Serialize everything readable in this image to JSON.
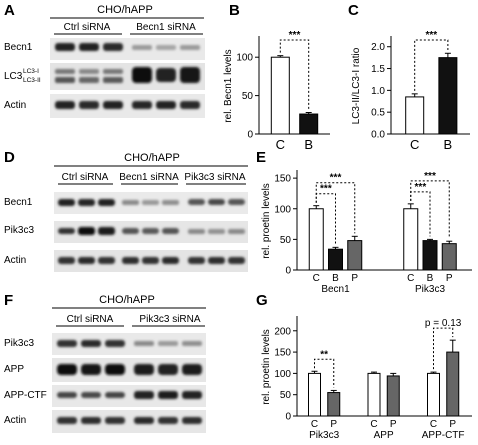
{
  "panels": {
    "A": {
      "letter": "A",
      "cell_line": "CHO/hAPP",
      "groups": [
        "Ctrl siRNA",
        "Becn1 siRNA"
      ],
      "rows": [
        "Becn1",
        "LC3",
        "Actin"
      ],
      "lc3_bands": [
        "LC3-I",
        "LC3-II"
      ]
    },
    "D": {
      "letter": "D",
      "cell_line": "CHO/hAPP",
      "groups": [
        "Ctrl siRNA",
        "Becn1 siRNA",
        "Pik3c3 siRNA"
      ],
      "rows": [
        "Becn1",
        "Pik3c3",
        "Actin"
      ]
    },
    "F": {
      "letter": "F",
      "cell_line": "CHO/hAPP",
      "groups": [
        "Ctrl siRNA",
        "Pik3c3 siRNA"
      ],
      "rows": [
        "Pik3c3",
        "APP",
        "APP-CTF",
        "Actin"
      ]
    },
    "B": {
      "letter": "B"
    },
    "C": {
      "letter": "C"
    },
    "E": {
      "letter": "E"
    },
    "G": {
      "letter": "G"
    }
  },
  "chart_data": [
    {
      "panel": "B",
      "type": "bar",
      "categories": [
        "C",
        "B"
      ],
      "values": [
        100,
        26
      ],
      "errors": [
        2,
        2
      ],
      "colors": [
        "#ffffff",
        "#111111"
      ],
      "ylabel": "rel. Becn1 levels",
      "ylim": [
        0,
        125
      ],
      "yticks": [
        0,
        50,
        100
      ],
      "comparisons": [
        {
          "from": 0,
          "to": 1,
          "label": "***"
        }
      ]
    },
    {
      "panel": "C",
      "type": "bar",
      "categories": [
        "C",
        "B"
      ],
      "values": [
        0.85,
        1.75
      ],
      "errors": [
        0.07,
        0.1
      ],
      "colors": [
        "#ffffff",
        "#111111"
      ],
      "ylabel": "LC3-II/LC3-I ratio",
      "ylim": [
        0,
        2.2
      ],
      "yticks": [
        0.0,
        0.5,
        1.0,
        1.5,
        2.0
      ],
      "tick_labels": [
        "0.0",
        "0.5",
        "1.0",
        "1.5",
        "2.0"
      ],
      "comparisons": [
        {
          "from": 0,
          "to": 1,
          "label": "***"
        }
      ]
    },
    {
      "panel": "E",
      "type": "bar",
      "groups": [
        {
          "name": "Becn1",
          "categories": [
            "C",
            "B",
            "P"
          ],
          "values": [
            100,
            34,
            48
          ],
          "errors": [
            5,
            3,
            7
          ]
        },
        {
          "name": "Pik3c3",
          "categories": [
            "C",
            "B",
            "P"
          ],
          "values": [
            100,
            48,
            43
          ],
          "errors": [
            8,
            2,
            4
          ]
        }
      ],
      "colors": [
        "#ffffff",
        "#111111",
        "#666666"
      ],
      "ylabel": "rel. proetin levels",
      "ylim": [
        0,
        160
      ],
      "yticks": [
        0,
        50,
        100,
        150
      ],
      "comparisons": [
        {
          "group": 0,
          "from": 0,
          "to": 1,
          "label": "***"
        },
        {
          "group": 0,
          "from": 0,
          "to": 2,
          "label": "***"
        },
        {
          "group": 1,
          "from": 0,
          "to": 1,
          "label": "***"
        },
        {
          "group": 1,
          "from": 0,
          "to": 2,
          "label": "***"
        }
      ]
    },
    {
      "panel": "G",
      "type": "bar",
      "groups": [
        {
          "name": "Pik3c3",
          "categories": [
            "C",
            "P"
          ],
          "values": [
            100,
            55
          ],
          "errors": [
            5,
            5
          ]
        },
        {
          "name": "APP",
          "categories": [
            "C",
            "P"
          ],
          "values": [
            100,
            94
          ],
          "errors": [
            3,
            6
          ]
        },
        {
          "name": "APP-CTF",
          "categories": [
            "C",
            "P"
          ],
          "values": [
            100,
            150
          ],
          "errors": [
            3,
            28
          ]
        }
      ],
      "colors": [
        "#ffffff",
        "#666666"
      ],
      "ylabel": "rel. proetin levels",
      "ylim": [
        0,
        230
      ],
      "yticks": [
        0,
        50,
        100,
        150,
        200
      ],
      "comparisons": [
        {
          "group": 0,
          "from": 0,
          "to": 1,
          "label": "**"
        },
        {
          "group": 2,
          "from": 0,
          "to": 1,
          "label": "p = 0.13"
        }
      ]
    }
  ]
}
